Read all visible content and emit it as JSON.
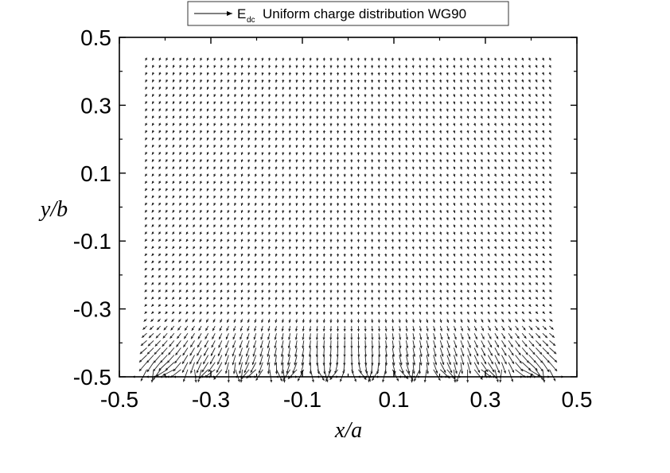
{
  "chart_data": {
    "type": "vector-field",
    "legend": {
      "symbol": "E",
      "subscript": "dc",
      "text": "Uniform charge distribution WG90",
      "placement": "top-center"
    },
    "xlabel": "x/a",
    "ylabel": "y/b",
    "xlim": [
      -0.5,
      0.5
    ],
    "ylim": [
      -0.5,
      0.5
    ],
    "xticks": [
      -0.5,
      -0.3,
      -0.1,
      0.1,
      0.3,
      0.5
    ],
    "xtick_labels": [
      "-0.5",
      "-0.3",
      "-0.1",
      "0.1",
      "0.3",
      "0.5"
    ],
    "yticks": [
      -0.5,
      -0.3,
      -0.1,
      0.1,
      0.3,
      0.5
    ],
    "ytick_labels": [
      "-0.5",
      "-0.3",
      "-0.1",
      "0.1",
      "0.3",
      "0.5"
    ],
    "grid": false,
    "field": {
      "x_range": [
        -0.44,
        0.44
      ],
      "y_range": [
        -0.5,
        0.44
      ],
      "nx": 60,
      "ny": 45,
      "source_x": [
        -0.44,
        -0.35,
        -0.265,
        -0.177,
        -0.088,
        0.0,
        0.088,
        0.177,
        0.265,
        0.35,
        0.44
      ],
      "source_y": -0.5
    }
  }
}
